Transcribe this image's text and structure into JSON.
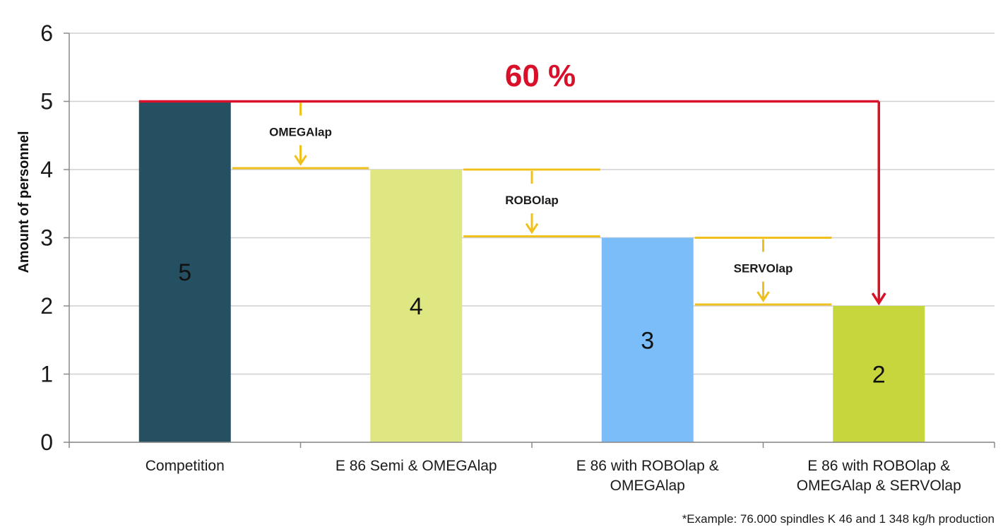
{
  "chart_data": {
    "type": "bar",
    "ylabel": "Amount of personnel",
    "ylim": [
      0,
      6
    ],
    "yticks": [
      0,
      1,
      2,
      3,
      4,
      5,
      6
    ],
    "grid": true,
    "categories": [
      [
        "Competition"
      ],
      [
        "E 86 Semi & OMEGAlap"
      ],
      [
        "E 86 with ROBOlap &",
        "OMEGAlap"
      ],
      [
        "E 86 with ROBOlap &",
        "OMEGAlap & SERVOlap"
      ]
    ],
    "values": [
      5,
      4,
      3,
      2
    ],
    "bar_colors": [
      "#255061",
      "#dfe783",
      "#7bbdf8",
      "#c7d63c"
    ],
    "steps": [
      {
        "label": "OMEGAlap",
        "from": 5,
        "to": 4
      },
      {
        "label": "ROBOlap",
        "from": 4,
        "to": 3
      },
      {
        "label": "SERVOlap",
        "from": 3,
        "to": 2
      }
    ],
    "step_color": "#f0c11e",
    "total_reduction": {
      "label": "60 %",
      "from": 5,
      "to": 2,
      "color": "#d8102a"
    },
    "footnote": "*Example:  76.000 spindles  K 46 and  1 348 kg/h production"
  }
}
